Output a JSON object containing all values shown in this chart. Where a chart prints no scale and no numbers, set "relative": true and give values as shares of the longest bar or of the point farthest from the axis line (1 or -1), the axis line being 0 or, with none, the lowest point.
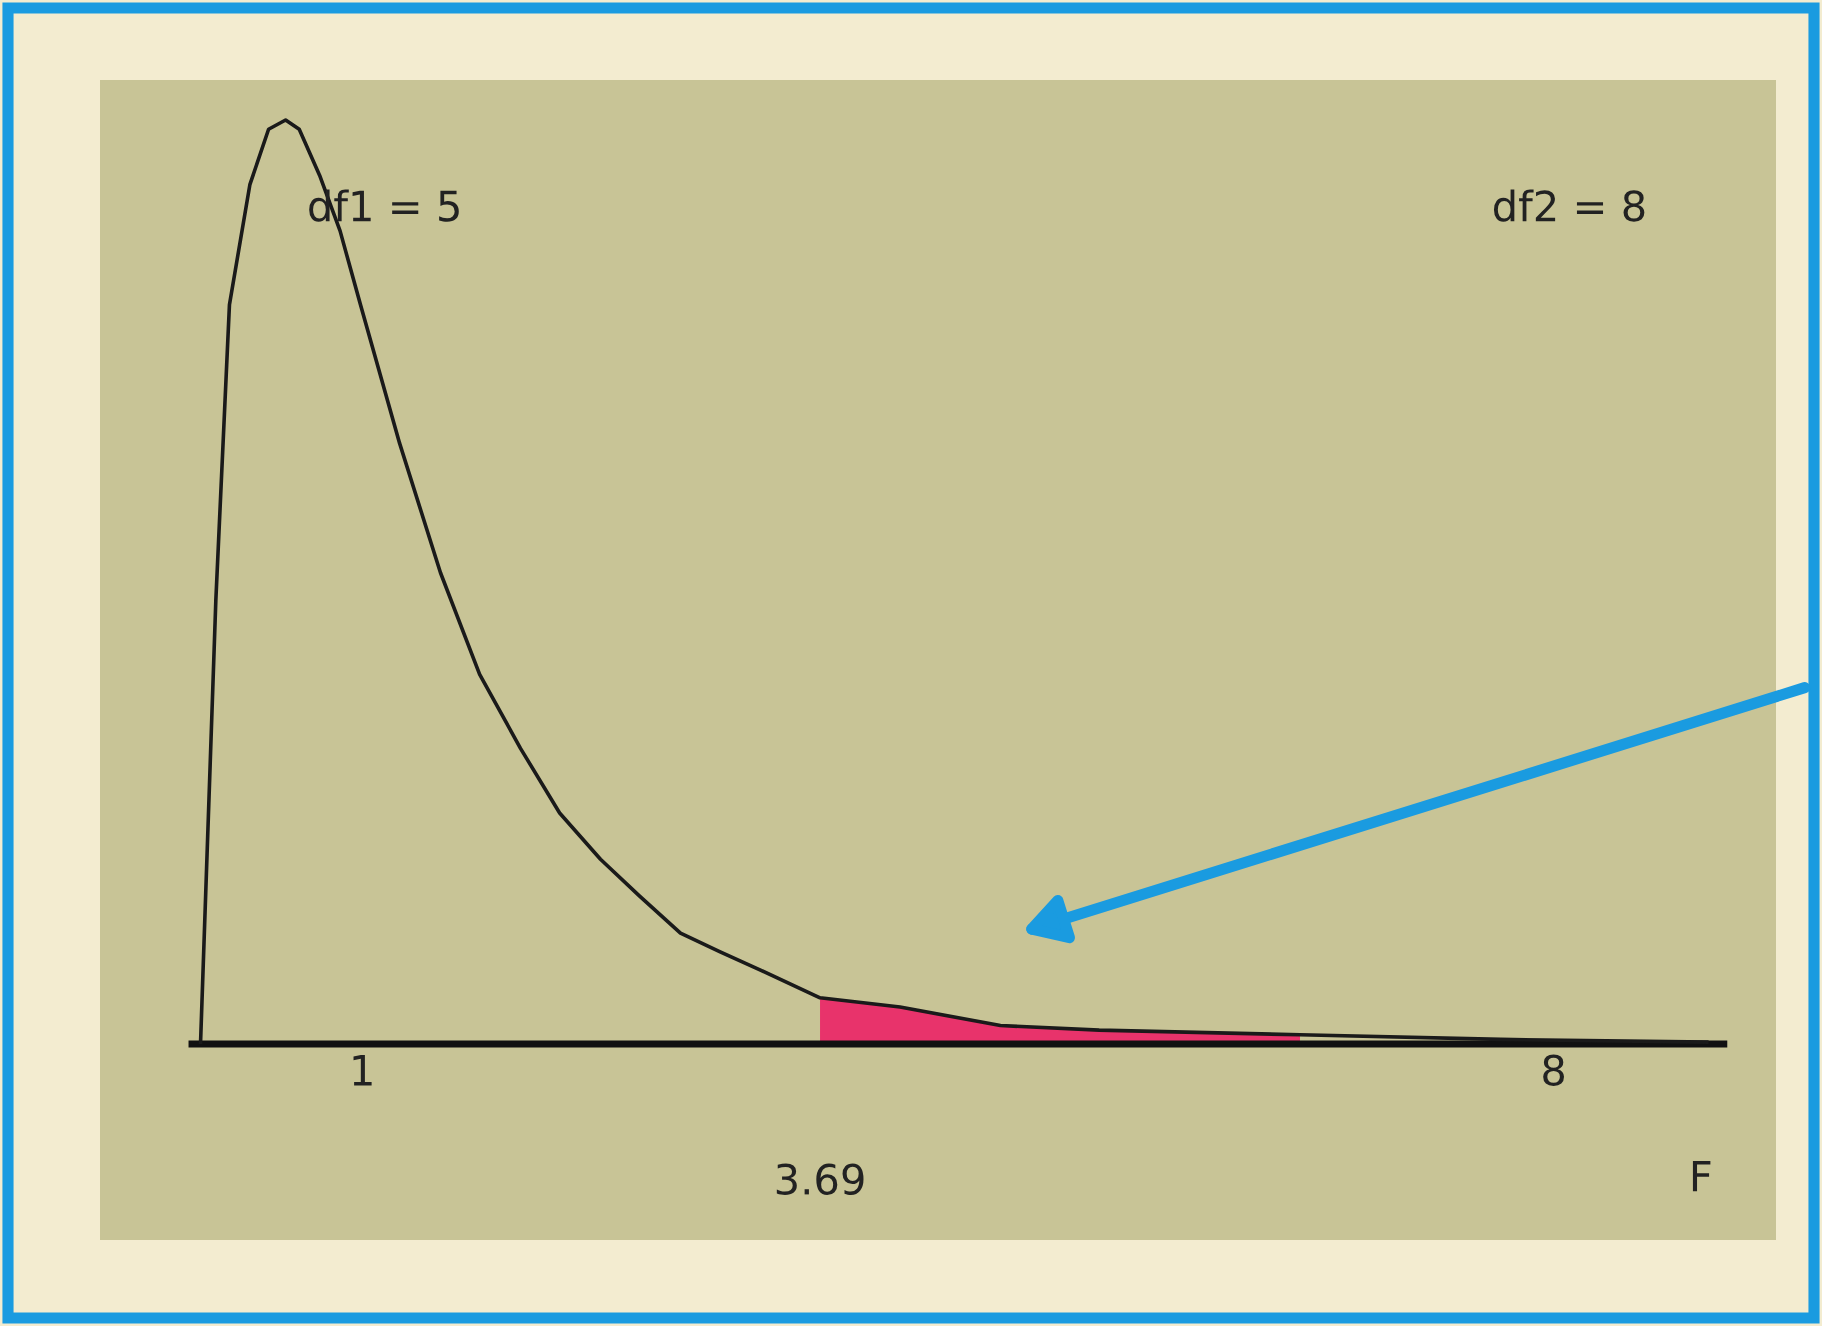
{
  "chart_data": {
    "type": "line",
    "relative": true,
    "xlabel": "F",
    "xlim": [
      0,
      9
    ],
    "xticks": [
      1,
      8
    ],
    "annotations": [
      "df1 = 5",
      "df2 = 8",
      {
        "text": "3.69",
        "x": 3.69,
        "y": 0
      }
    ],
    "grid": false,
    "series": [
      {
        "color": "#1a1a1a",
        "x": [
          0.05,
          0.14,
          0.22,
          0.34,
          0.45,
          0.55,
          0.63,
          0.75,
          0.87,
          0.99,
          1.22,
          1.46,
          1.69,
          1.93,
          2.16,
          2.4,
          2.63,
          2.87,
          3.1,
          3.34,
          3.69,
          4.16,
          4.75,
          5.33,
          6.51,
          7.69,
          8.9
        ],
        "values": [
          0,
          0.48,
          0.8,
          0.93,
          0.99,
          1.0,
          0.99,
          0.94,
          0.88,
          0.8,
          0.65,
          0.51,
          0.4,
          0.32,
          0.25,
          0.2,
          0.16,
          0.12,
          0.1,
          0.08,
          0.05,
          0.04,
          0.02,
          0.015,
          0.01,
          0.005,
          0.002
        ]
      },
      {
        "type": "area",
        "color": "#e8336b",
        "x": [
          3.69,
          4.16,
          4.75,
          5.33,
          6.51
        ],
        "values": [
          0.05,
          0.04,
          0.02,
          0.015,
          0.01
        ]
      }
    ]
  }
}
